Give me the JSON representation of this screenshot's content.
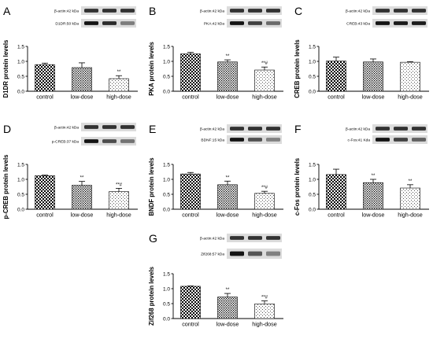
{
  "figure": {
    "panels": [
      {
        "letter": "A",
        "blots": [
          {
            "label": "β-actin:42 kDa"
          },
          {
            "label": "D1DR:50 kDa"
          }
        ]
      },
      {
        "letter": "B",
        "blots": [
          {
            "label": "β-actin:42 kDa"
          },
          {
            "label": "PKA:42 kDa"
          }
        ]
      },
      {
        "letter": "C",
        "blots": [
          {
            "label": "β-actin:42 kDa"
          },
          {
            "label": "CREB:43 kDa"
          }
        ]
      },
      {
        "letter": "D",
        "blots": [
          {
            "label": "β-actin:42 kDa"
          },
          {
            "label": "p-CREB:37 kDa"
          }
        ]
      },
      {
        "letter": "E",
        "blots": [
          {
            "label": "β-actin:42 kDa"
          },
          {
            "label": "BDNF:15 kDa"
          }
        ]
      },
      {
        "letter": "F",
        "blots": [
          {
            "label": "β-actin:42 kDa"
          },
          {
            "label": "c-Fos:41 Kda"
          }
        ]
      },
      {
        "letter": "G",
        "blots": [
          {
            "label": "β-actin:42 kDa"
          },
          {
            "label": "Zif268:57 kDa"
          }
        ]
      }
    ],
    "colors": {
      "bars": "#000000",
      "axes": "#000000",
      "blot_background": "#dcdcdc",
      "band": "#141414"
    }
  },
  "chart_data": [
    {
      "type": "bar",
      "title": "A",
      "ylabel": "D1DR protein levels",
      "categories": [
        "control",
        "low-dose",
        "high-dose"
      ],
      "values": [
        0.89,
        0.79,
        0.42
      ],
      "errors": [
        0.05,
        0.16,
        0.1
      ],
      "annotations": [
        "",
        "",
        "**"
      ],
      "ylim": [
        0,
        1.5
      ],
      "yticks": [
        "0.0",
        "0.5",
        "1.0",
        "1.5"
      ],
      "fill_patterns": [
        "checker",
        "dense-dots",
        "sparse-dots"
      ],
      "grid": false,
      "legend": "none"
    },
    {
      "type": "bar",
      "title": "B",
      "ylabel": "PKA protein levels",
      "categories": [
        "control",
        "low-dose",
        "high-dose"
      ],
      "values": [
        1.25,
        0.98,
        0.71
      ],
      "errors": [
        0.05,
        0.07,
        0.1
      ],
      "annotations": [
        "",
        "**",
        "**#"
      ],
      "ylim": [
        0,
        1.5
      ],
      "yticks": [
        "0.0",
        "0.5",
        "1.0",
        "1.5"
      ],
      "fill_patterns": [
        "checker",
        "dense-dots",
        "sparse-dots"
      ],
      "grid": false,
      "legend": "none"
    },
    {
      "type": "bar",
      "title": "C",
      "ylabel": "CREB protein levels",
      "categories": [
        "control",
        "low-dose",
        "high-dose"
      ],
      "values": [
        1.01,
        0.98,
        0.97
      ],
      "errors": [
        0.13,
        0.1,
        0.02
      ],
      "annotations": [
        "",
        "",
        ""
      ],
      "ylim": [
        0,
        1.5
      ],
      "yticks": [
        "0.0",
        "0.5",
        "1.0",
        "1.5"
      ],
      "fill_patterns": [
        "checker",
        "dense-dots",
        "sparse-dots"
      ],
      "grid": false,
      "legend": "none"
    },
    {
      "type": "bar",
      "title": "D",
      "ylabel": "p-CREB protein levels",
      "categories": [
        "control",
        "low-dose",
        "high-dose"
      ],
      "values": [
        1.12,
        0.8,
        0.59
      ],
      "errors": [
        0.02,
        0.13,
        0.11
      ],
      "annotations": [
        "",
        "**",
        "**#"
      ],
      "ylim": [
        0,
        1.5
      ],
      "yticks": [
        "0.0",
        "0.5",
        "1.0",
        "1.5"
      ],
      "fill_patterns": [
        "checker",
        "dense-dots",
        "sparse-dots"
      ],
      "grid": false,
      "legend": "none"
    },
    {
      "type": "bar",
      "title": "E",
      "ylabel": "BNDF protein levels",
      "categories": [
        "control",
        "low-dose",
        "high-dose"
      ],
      "values": [
        1.18,
        0.82,
        0.53
      ],
      "errors": [
        0.05,
        0.12,
        0.07
      ],
      "annotations": [
        "",
        "**",
        "**#"
      ],
      "ylim": [
        0,
        1.5
      ],
      "yticks": [
        "0.0",
        "0.5",
        "1.0",
        "1.5"
      ],
      "fill_patterns": [
        "checker",
        "dense-dots",
        "sparse-dots"
      ],
      "grid": false,
      "legend": "none"
    },
    {
      "type": "bar",
      "title": "F",
      "ylabel": "c-Fos protein levels",
      "categories": [
        "control",
        "low-dose",
        "high-dose"
      ],
      "values": [
        1.16,
        0.89,
        0.71
      ],
      "errors": [
        0.18,
        0.11,
        0.11
      ],
      "annotations": [
        "",
        "**",
        "**"
      ],
      "ylim": [
        0,
        1.5
      ],
      "yticks": [
        "0.0",
        "0.5",
        "1.0",
        "1.5"
      ],
      "fill_patterns": [
        "checker",
        "dense-dots",
        "sparse-dots"
      ],
      "grid": false,
      "legend": "none"
    },
    {
      "type": "bar",
      "title": "G",
      "ylabel": "Zif268 protein levels",
      "categories": [
        "control",
        "low-dose",
        "high-dose"
      ],
      "values": [
        1.08,
        0.72,
        0.49
      ],
      "errors": [
        0.01,
        0.12,
        0.1
      ],
      "annotations": [
        "",
        "**",
        "**#"
      ],
      "ylim": [
        0,
        1.5
      ],
      "yticks": [
        "0.0",
        "0.5",
        "1.0",
        "1.5"
      ],
      "fill_patterns": [
        "checker",
        "dense-dots",
        "sparse-dots"
      ],
      "grid": false,
      "legend": "none"
    }
  ]
}
